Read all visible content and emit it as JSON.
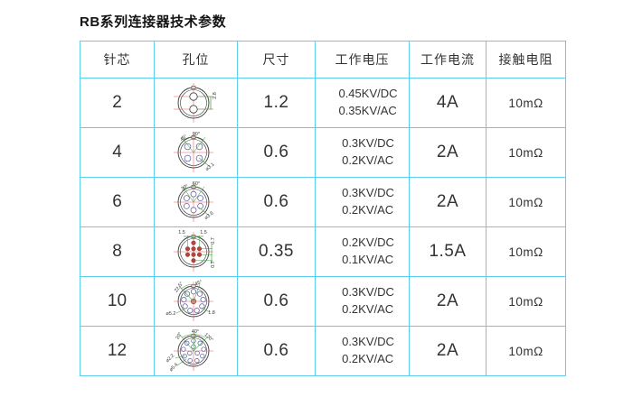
{
  "title": "RB系列连接器技术参数",
  "table": {
    "headers": [
      "针芯",
      "孔位",
      "尺寸",
      "工作电压",
      "工作电流",
      "接触电阻"
    ],
    "rows": [
      {
        "pins": "2",
        "diagram": {
          "pin_count": 2,
          "dim_labels": [
            "2.8"
          ]
        },
        "size": "1.2",
        "voltage": [
          "0.45KV/DC",
          "0.35KV/AC"
        ],
        "current": "4A",
        "resistance": "10mΩ"
      },
      {
        "pins": "4",
        "diagram": {
          "pin_count": 4,
          "dim_labels": [
            "90°",
            "45°",
            "⌀3.1"
          ]
        },
        "size": "0.6",
        "voltage": [
          "0.3KV/DC",
          "0.2KV/AC"
        ],
        "current": "2A",
        "resistance": "10mΩ"
      },
      {
        "pins": "6",
        "diagram": {
          "pin_count": 6,
          "dim_labels": [
            "60°",
            "30°",
            "⌀3.6"
          ]
        },
        "size": "0.6",
        "voltage": [
          "0.3KV/DC",
          "0.2KV/AC"
        ],
        "current": "2A",
        "resistance": "10mΩ"
      },
      {
        "pins": "8",
        "diagram": {
          "pin_count": 8,
          "dim_labels": [
            "1.5",
            "1.5",
            "0.7",
            "0.7"
          ]
        },
        "size": "0.35",
        "voltage": [
          "0.2KV/DC",
          "0.1KV/AC"
        ],
        "current": "1.5A",
        "resistance": "10mΩ"
      },
      {
        "pins": "10",
        "diagram": {
          "pin_count": 10,
          "dim_labels": [
            "22.5°",
            "45°",
            "⌀5.2",
            "1.8"
          ]
        },
        "size": "0.6",
        "voltage": [
          "0.3KV/DC",
          "0.2KV/AC"
        ],
        "current": "2A",
        "resistance": "10mΩ"
      },
      {
        "pins": "12",
        "diagram": {
          "pin_count": 12,
          "dim_labels": [
            "20°",
            "40°",
            "120°",
            "⌀2.2",
            "⌀5.4"
          ]
        },
        "size": "0.6",
        "voltage": [
          "0.3KV/DC",
          "0.2KV/AC"
        ],
        "current": "2A",
        "resistance": "10mΩ"
      }
    ]
  },
  "colors": {
    "table_border": "#5ecdf2",
    "diagram_ink": "#3a3a3a",
    "crosshair_red": "#e55a5a",
    "dimension_green": "#4aa54a",
    "pin_dot_red": "#b3453d",
    "hole_stroke_blue": "#6868a8",
    "center_hole_red": "#d88a84"
  }
}
